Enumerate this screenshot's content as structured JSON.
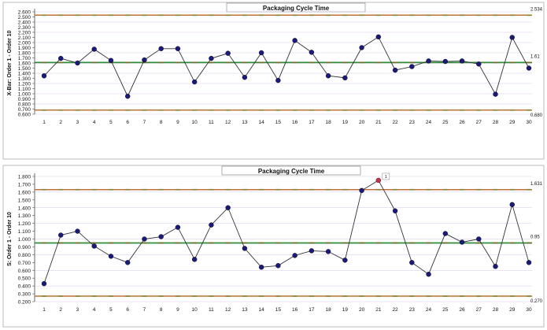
{
  "chart_data": [
    {
      "type": "line",
      "title": "Packaging Cycle Time",
      "xlabel": "",
      "ylabel": "X-Bar: Order 1 - Order 10",
      "x": [
        1,
        2,
        3,
        4,
        5,
        6,
        7,
        8,
        9,
        10,
        11,
        12,
        13,
        14,
        15,
        16,
        17,
        18,
        19,
        20,
        21,
        22,
        23,
        24,
        25,
        26,
        27,
        28,
        29,
        30
      ],
      "ylim": [
        0.6,
        2.6
      ],
      "yticks": [
        "2.600",
        "2.500",
        "2.400",
        "2.300",
        "2.200",
        "2.100",
        "2.000",
        "1.900",
        "1.800",
        "1.700",
        "1.600",
        "1.500",
        "1.400",
        "1.300",
        "1.200",
        "1.100",
        "1.000",
        "0.900",
        "0.800",
        "0.700",
        "0.600"
      ],
      "series": [
        {
          "values": [
            1.35,
            1.69,
            1.6,
            1.87,
            1.65,
            0.95,
            1.66,
            1.88,
            1.88,
            1.23,
            1.69,
            1.79,
            1.32,
            1.8,
            1.26,
            2.04,
            1.81,
            1.35,
            1.31,
            1.9,
            2.11,
            1.46,
            1.53,
            1.64,
            1.63,
            1.64,
            1.58,
            0.99,
            2.1,
            1.5
          ]
        }
      ],
      "control_lines": {
        "ucl": {
          "value": 2.534,
          "label": "2.534",
          "color": "#c0703a"
        },
        "center": {
          "value": 1.61,
          "label": "1.61",
          "color": "#2e8b3a"
        },
        "lcl": {
          "value": 0.68,
          "label": "0.680",
          "color": "#c0703a"
        }
      },
      "colors": {
        "marker": "#1a1a7a",
        "line": "#333333",
        "grid": "#d9c7e6"
      },
      "grid": true
    },
    {
      "type": "line",
      "title": "Packaging Cycle Time",
      "xlabel": "",
      "ylabel": "S: Order 1 - Order 10",
      "x": [
        1,
        2,
        3,
        4,
        5,
        6,
        7,
        8,
        9,
        10,
        11,
        12,
        13,
        14,
        15,
        16,
        17,
        18,
        19,
        20,
        21,
        22,
        23,
        24,
        25,
        26,
        27,
        28,
        29,
        30
      ],
      "ylim": [
        0.2,
        1.8
      ],
      "yticks": [
        "1.800",
        "1.700",
        "1.600",
        "1.500",
        "1.400",
        "1.300",
        "1.200",
        "1.100",
        "1.000",
        "0.900",
        "0.800",
        "0.700",
        "0.600",
        "0.500",
        "0.400",
        "0.300",
        "0.200"
      ],
      "series": [
        {
          "values": [
            0.43,
            1.05,
            1.1,
            0.91,
            0.78,
            0.7,
            1.0,
            1.03,
            1.15,
            0.74,
            1.18,
            1.4,
            0.88,
            0.64,
            0.66,
            0.79,
            0.85,
            0.84,
            0.73,
            1.62,
            1.75,
            1.36,
            0.7,
            0.55,
            1.07,
            0.96,
            1.0,
            0.65,
            1.44,
            0.7
          ]
        }
      ],
      "out_of_control": [
        {
          "x": 21,
          "label": "1",
          "color": "#c8324a"
        }
      ],
      "control_lines": {
        "ucl": {
          "value": 1.631,
          "label": "1.631",
          "color": "#c0703a"
        },
        "center": {
          "value": 0.95,
          "label": "0.95",
          "color": "#2e8b3a"
        },
        "lcl": {
          "value": 0.27,
          "label": "0.270",
          "color": "#c0703a"
        }
      },
      "colors": {
        "marker": "#1a1a7a",
        "line": "#333333",
        "grid": "#d9c7e6"
      },
      "grid": true
    }
  ]
}
